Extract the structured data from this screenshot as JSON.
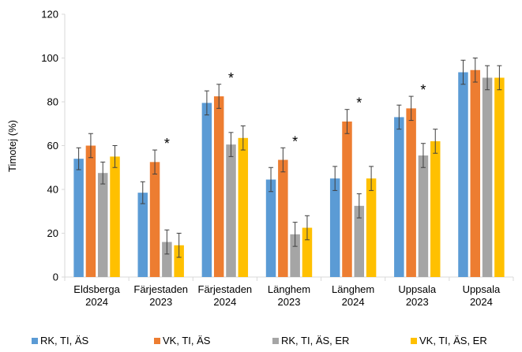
{
  "chart_data": {
    "type": "bar",
    "ylabel": "Timotej (%)",
    "ylim": [
      0,
      120
    ],
    "yticks": [
      0,
      20,
      40,
      60,
      80,
      100,
      120
    ],
    "grid": false,
    "legend_position": "bottom",
    "categories": [
      [
        "Eldsberga",
        "2024"
      ],
      [
        "Färjestaden",
        "2023"
      ],
      [
        "Färjestaden",
        "2024"
      ],
      [
        "Länghem",
        "2023"
      ],
      [
        "Länghem",
        "2024"
      ],
      [
        "Uppsala",
        "2023"
      ],
      [
        "Uppsala",
        "2024"
      ]
    ],
    "series": [
      {
        "name": "RK, TI, ÄS",
        "color": "#5b9bd5",
        "values": [
          54,
          38.5,
          79.5,
          44.5,
          45,
          73,
          93.5
        ],
        "errors": [
          5,
          5,
          5.5,
          5.5,
          5.5,
          5.5,
          5.5
        ]
      },
      {
        "name": "VK, TI, ÄS",
        "color": "#ed7d31",
        "values": [
          60,
          52.5,
          82.5,
          53.5,
          71,
          77,
          94.5
        ],
        "errors": [
          5.5,
          5.5,
          5.5,
          5.5,
          5.5,
          5.5,
          5.5
        ]
      },
      {
        "name": "RK, TI, ÄS, ER",
        "color": "#a5a5a5",
        "values": [
          47.5,
          16,
          60.5,
          19.5,
          32.5,
          55.5,
          91
        ],
        "errors": [
          5,
          5.5,
          5.5,
          5.5,
          5.5,
          5.5,
          5.5
        ]
      },
      {
        "name": "VK, TI, ÄS, ER",
        "color": "#ffc000",
        "values": [
          55,
          14.5,
          63.5,
          22.5,
          45,
          62,
          91
        ],
        "errors": [
          5,
          5.5,
          5.5,
          5.5,
          5.5,
          5.5,
          5.5
        ]
      }
    ],
    "annotations": [
      {
        "text": "*",
        "category_index": 1,
        "series_index": 1
      },
      {
        "text": "*",
        "category_index": 2,
        "series_index": 1
      },
      {
        "text": "*",
        "category_index": 3,
        "series_index": 1
      },
      {
        "text": "*",
        "category_index": 4,
        "series_index": 1
      },
      {
        "text": "*",
        "category_index": 5,
        "series_index": 1
      }
    ]
  }
}
